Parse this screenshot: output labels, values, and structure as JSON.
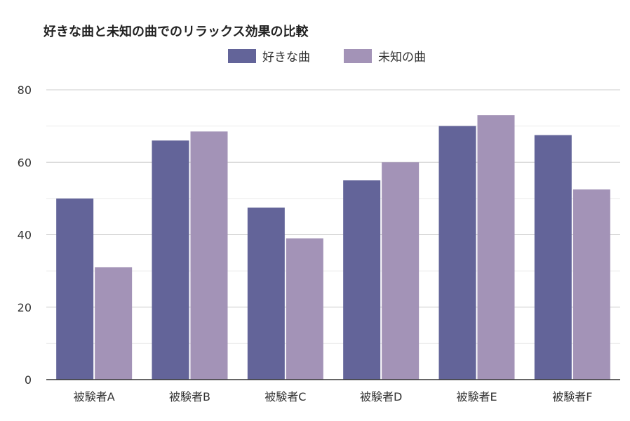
{
  "chart_data": {
    "type": "bar",
    "title": "好きな曲と未知の曲でのリラックス効果の比較",
    "xlabel": "",
    "ylabel": "",
    "categories": [
      "被験者A",
      "被験者B",
      "被験者C",
      "被験者D",
      "被験者E",
      "被験者F"
    ],
    "series": [
      {
        "name": "好きな曲",
        "color": "#636499",
        "values": [
          50,
          66,
          47.5,
          55,
          70,
          67.5
        ]
      },
      {
        "name": "未知の曲",
        "color": "#a393b7",
        "values": [
          31,
          68.5,
          39,
          60,
          73,
          52.5
        ]
      }
    ],
    "ylim": [
      0,
      80
    ],
    "yticks": [
      "0",
      "20",
      "40",
      "60",
      "80"
    ],
    "grid": true,
    "legend_position": "top-center"
  }
}
